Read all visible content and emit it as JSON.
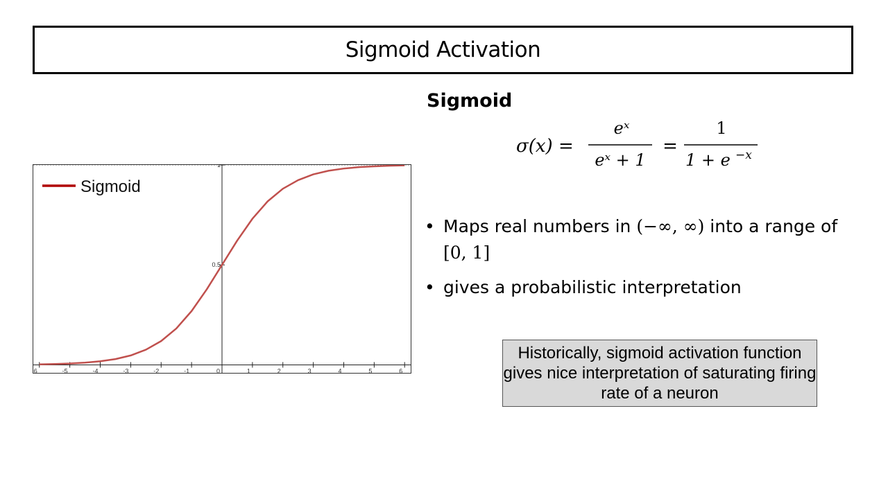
{
  "slide": {
    "title": "Sigmoid Activation",
    "heading": "Sigmoid",
    "formula": {
      "lhs": "σ(x) =",
      "num1": "eˣ",
      "den1": "eˣ + 1",
      "eq2": "=",
      "num2": "1",
      "den2": "1 + e",
      "den2_exp": "−x"
    },
    "bullets": [
      {
        "before": "Maps real numbers in ",
        "math1": "(−∞, ∞)",
        "middle": " into a range of ",
        "math2": "[0, 1]"
      },
      {
        "text": "gives a probabilistic interpretation"
      }
    ],
    "bullet_glyph": "•",
    "note": "Historically, sigmoid activation function gives nice interpretation of saturating firing rate of a neuron",
    "colors": {
      "curve": "#c0504d",
      "legend_line": "#b00000",
      "note_bg": "#d9d9d9"
    }
  },
  "chart_data": {
    "type": "line",
    "title": "",
    "xlabel": "",
    "ylabel": "",
    "xlim": [
      -6.2,
      6.2
    ],
    "ylim": [
      -0.04,
      1.0
    ],
    "x_ticks": [
      -6,
      -5,
      -4,
      -3,
      -2,
      -1,
      0,
      1,
      2,
      3,
      4,
      5,
      6
    ],
    "x_tick_labels": [
      "-6",
      "-5",
      "-4",
      "-3",
      "-2",
      "-1",
      "0",
      "1",
      "2",
      "3",
      "4",
      "5",
      "6"
    ],
    "y_ticks": [
      0.5,
      1
    ],
    "y_tick_labels": [
      "0.5",
      "1"
    ],
    "legend": {
      "position": "top-left",
      "entries": [
        "Sigmoid"
      ]
    },
    "series": [
      {
        "name": "Sigmoid",
        "x": [
          -6,
          -5.5,
          -5,
          -4.5,
          -4,
          -3.5,
          -3,
          -2.5,
          -2,
          -1.5,
          -1,
          -0.5,
          0,
          0.5,
          1,
          1.5,
          2,
          2.5,
          3,
          3.5,
          4,
          4.5,
          5,
          5.5,
          6
        ],
        "y": [
          0.0025,
          0.0041,
          0.0067,
          0.011,
          0.018,
          0.029,
          0.047,
          0.076,
          0.119,
          0.182,
          0.269,
          0.378,
          0.5,
          0.622,
          0.731,
          0.818,
          0.881,
          0.924,
          0.953,
          0.971,
          0.982,
          0.989,
          0.993,
          0.996,
          0.998
        ]
      }
    ]
  }
}
